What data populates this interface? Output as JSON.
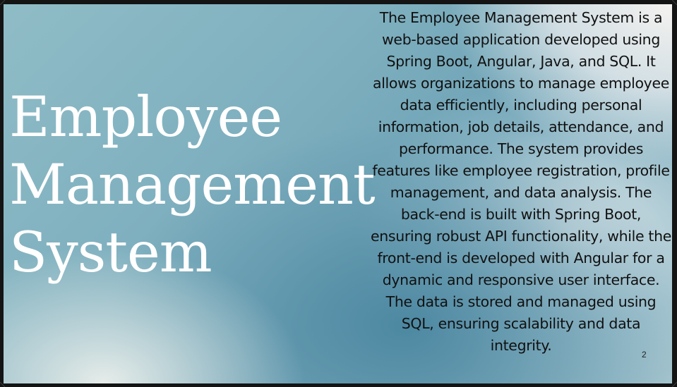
{
  "slide": {
    "title": "Employee\nManagement\nSystem",
    "description": "The Employee Management System is a web-based application developed using Spring Boot, Angular, Java, and SQL. It allows organizations to manage employee data efficiently, including personal information, job details, attendance, and performance. The system provides features like employee registration, profile management, and data analysis. The back-end is built with Spring Boot, ensuring robust API functionality, while the front-end is developed with Angular for a dynamic and responsive user interface. The data is stored and managed using SQL, ensuring scalability and data integrity.",
    "page_number": "2"
  },
  "colors": {
    "title_text": "#ffffff",
    "body_text": "#111111",
    "frame": "#141414",
    "accent_teal": "#4a86a0"
  }
}
